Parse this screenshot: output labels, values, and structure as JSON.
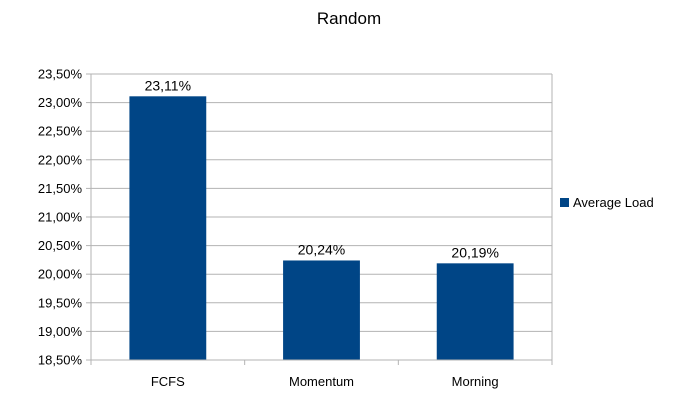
{
  "chart_data": {
    "type": "bar",
    "title": "Random",
    "xlabel": "",
    "ylabel": "",
    "categories": [
      "FCFS",
      "Momentum",
      "Morning"
    ],
    "series": [
      {
        "name": "Average Load",
        "values": [
          23.11,
          20.24,
          20.19
        ],
        "data_labels": [
          "23,11%",
          "20,24%",
          "20,19%"
        ],
        "color": "#004586"
      }
    ],
    "ylim": [
      18.5,
      23.5
    ],
    "y_step": 0.5,
    "y_tick_labels": [
      "18,50%",
      "19,00%",
      "19,50%",
      "20,00%",
      "20,50%",
      "21,00%",
      "21,50%",
      "22,00%",
      "22,50%",
      "23,00%",
      "23,50%"
    ],
    "grid": true,
    "legend_position": "right",
    "colors": {
      "bar": "#004586",
      "grid": "#b3b3b3",
      "axis": "#b3b3b3"
    }
  }
}
